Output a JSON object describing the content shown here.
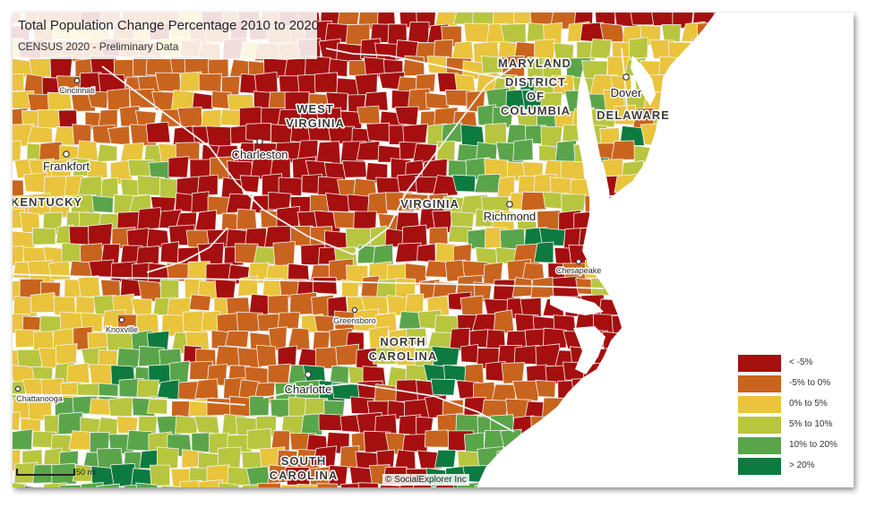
{
  "header": {
    "title": "Total Population Change Percentage 2010 to 2020",
    "subtitle": "CENSUS 2020 - Preliminary Data"
  },
  "legend": {
    "items": [
      {
        "label": "< -5%",
        "color": "#a50f0f"
      },
      {
        "label": "-5% to 0%",
        "color": "#c9641e"
      },
      {
        "label": "0% to 5%",
        "color": "#e9c43c"
      },
      {
        "label": "5% to 10%",
        "color": "#b7c63e"
      },
      {
        "label": "10% to 20%",
        "color": "#5aa54a"
      },
      {
        "label": "> 20%",
        "color": "#0d7a3f"
      }
    ]
  },
  "map": {
    "states": [
      {
        "id": "west-virginia",
        "lines": [
          "WEST",
          "VIRGINIA"
        ]
      },
      {
        "id": "maryland",
        "lines": [
          "MARYLAND"
        ]
      },
      {
        "id": "district-of-columbia",
        "lines": [
          "DISTRICT",
          "OF",
          "COLUMBIA"
        ]
      },
      {
        "id": "delaware",
        "lines": [
          "DELAWARE"
        ]
      },
      {
        "id": "kentucky",
        "lines": [
          "KENTUCKY"
        ]
      },
      {
        "id": "virginia",
        "lines": [
          "VIRGINIA"
        ]
      },
      {
        "id": "north-carolina",
        "lines": [
          "NORTH",
          "CAROLINA"
        ]
      },
      {
        "id": "south-carolina",
        "lines": [
          "SOUTH",
          "CAROLINA"
        ]
      }
    ],
    "cities": [
      {
        "id": "cincinnati",
        "name": "Cincinnati",
        "size": "small"
      },
      {
        "id": "frankfort",
        "name": "Frankfort",
        "size": "big"
      },
      {
        "id": "charleston",
        "name": "Charleston",
        "size": "big"
      },
      {
        "id": "dover",
        "name": "Dover",
        "size": "big"
      },
      {
        "id": "richmond",
        "name": "Richmond",
        "size": "big"
      },
      {
        "id": "chesapeake",
        "name": "Chesapeake",
        "size": "small"
      },
      {
        "id": "knoxville",
        "name": "Knoxville",
        "size": "small"
      },
      {
        "id": "greensboro",
        "name": "Greensboro",
        "size": "small"
      },
      {
        "id": "charlotte",
        "name": "Charlotte",
        "size": "big"
      },
      {
        "id": "chattanooga",
        "name": "Chattanooga",
        "size": "small"
      }
    ]
  },
  "scale": {
    "label": "50 mi"
  },
  "credit": "© SocialExplorer Inc"
}
